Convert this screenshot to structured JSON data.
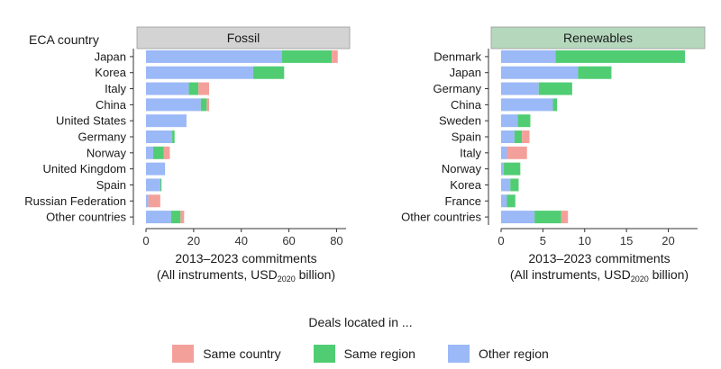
{
  "legend": {
    "title": "Deals located in ...",
    "items": [
      {
        "label": "Same country",
        "color": "#F4A09A"
      },
      {
        "label": "Same region",
        "color": "#50CD73"
      },
      {
        "label": "Other region",
        "color": "#9BB8F7"
      }
    ]
  },
  "chart_data": [
    {
      "type": "bar",
      "orientation": "horizontal",
      "stacked": true,
      "title": "Fossil",
      "title_bg": "#D3D3D3",
      "ylabel": "ECA country",
      "xlabel_line1": "2013–2023 commitments",
      "xlabel_line2_prefix": "(All instruments, USD",
      "xlabel_line2_sub": "2020",
      "xlabel_line2_suffix": " billion)",
      "xlim": [
        0,
        84
      ],
      "xticks": [
        0,
        20,
        40,
        60,
        80
      ],
      "categories": [
        "Japan",
        "Korea",
        "Italy",
        "China",
        "United States",
        "Germany",
        "Norway",
        "United Kingdom",
        "Spain",
        "Russian Federation",
        "Other countries"
      ],
      "series": [
        {
          "name": "Other region",
          "values": [
            57,
            45,
            18,
            23,
            17,
            11,
            3,
            8,
            6,
            1,
            10.5
          ]
        },
        {
          "name": "Same region",
          "values": [
            21,
            13,
            4,
            2.5,
            0,
            1,
            4.5,
            0,
            0.5,
            0,
            4
          ]
        },
        {
          "name": "Same country",
          "values": [
            2.5,
            0,
            4.5,
            1,
            0,
            0,
            2.5,
            0,
            0,
            5,
            1.5
          ]
        }
      ]
    },
    {
      "type": "bar",
      "orientation": "horizontal",
      "stacked": true,
      "title": "Renewables",
      "title_bg": "#B5D8BD",
      "ylabel": "",
      "xlabel_line1": "2013–2023 commitments",
      "xlabel_line2_prefix": "(All instruments, USD",
      "xlabel_line2_sub": "2020",
      "xlabel_line2_suffix": " billion)",
      "xlim": [
        0,
        23.5
      ],
      "xticks": [
        0,
        5,
        10,
        15,
        20
      ],
      "categories": [
        "Denmark",
        "Japan",
        "Germany",
        "China",
        "Sweden",
        "Spain",
        "Italy",
        "Norway",
        "Korea",
        "France",
        "Other countries"
      ],
      "series": [
        {
          "name": "Other region",
          "values": [
            6.5,
            9.2,
            4.5,
            6.2,
            2,
            1.6,
            0.7,
            0.3,
            1.1,
            0.7,
            4
          ]
        },
        {
          "name": "Same region",
          "values": [
            15.5,
            4,
            4,
            0.5,
            1.5,
            0.9,
            0,
            2,
            1,
            1,
            3.2
          ]
        },
        {
          "name": "Same country",
          "values": [
            0,
            0,
            0,
            0,
            0,
            0.9,
            2.4,
            0,
            0,
            0,
            0.8
          ]
        }
      ]
    }
  ]
}
